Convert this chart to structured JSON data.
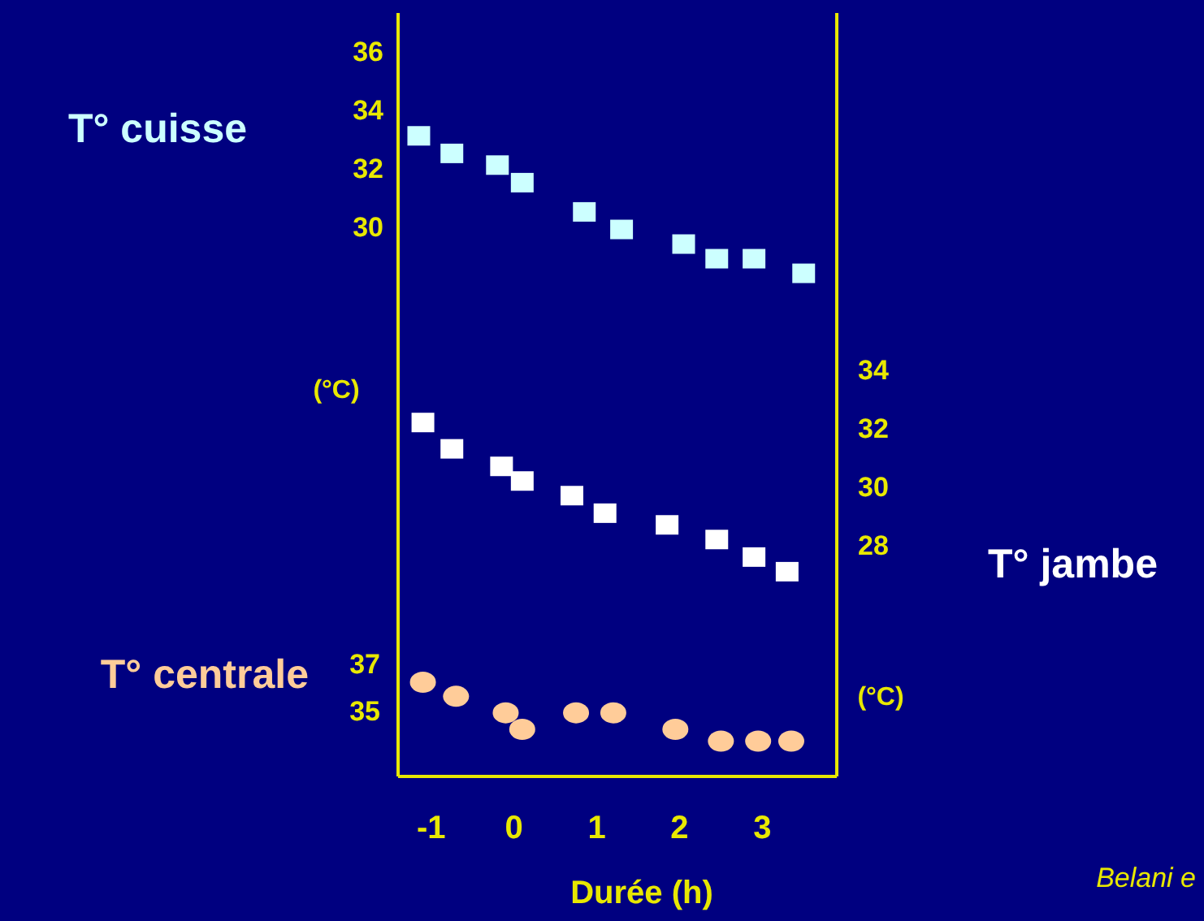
{
  "chart_data": {
    "type": "scatter",
    "xlabel": "Durée (h)",
    "ylabel": "(°C)",
    "y2label": "(°C)",
    "xlim": [
      -1.4,
      3.9
    ],
    "xticks": [
      -1,
      0,
      1,
      2,
      3
    ],
    "ylim": [
      11.2,
      37.3
    ],
    "yticks": [
      30,
      32,
      34,
      36
    ],
    "y2lim": [
      20.1,
      46.2
    ],
    "y2ticks": [
      28,
      30,
      32,
      34
    ],
    "y3lim": [
      32.2,
      64.6
    ],
    "y3ticks": [
      35,
      37
    ],
    "series": [
      {
        "name": "T° cuisse",
        "color": "#ccffff",
        "marker": "square",
        "axis": "y",
        "x": [
          -1.15,
          -0.75,
          -0.2,
          0.1,
          0.85,
          1.3,
          2.05,
          2.45,
          2.9,
          3.5
        ],
        "values": [
          33.1,
          32.5,
          32.1,
          31.5,
          30.5,
          29.9,
          29.4,
          28.9,
          28.9,
          28.4
        ]
      },
      {
        "name": "T° jambe",
        "color": "#ffffff",
        "marker": "square",
        "axis": "y2",
        "x": [
          -1.1,
          -0.75,
          -0.15,
          0.1,
          0.7,
          1.1,
          1.85,
          2.45,
          2.9,
          3.3
        ],
        "values": [
          32.2,
          31.3,
          30.7,
          30.2,
          29.7,
          29.1,
          28.7,
          28.2,
          27.6,
          27.1
        ]
      },
      {
        "name": "T° centrale",
        "color": "#ffcc99",
        "marker": "circle",
        "axis": "y3",
        "x": [
          -1.1,
          -0.7,
          -0.1,
          0.1,
          0.75,
          1.2,
          1.95,
          2.5,
          2.95,
          3.35
        ],
        "values": [
          36.2,
          35.6,
          34.9,
          34.2,
          34.9,
          34.9,
          34.2,
          33.7,
          33.7,
          33.7
        ]
      }
    ],
    "annotations": [
      "Belani e"
    ]
  }
}
